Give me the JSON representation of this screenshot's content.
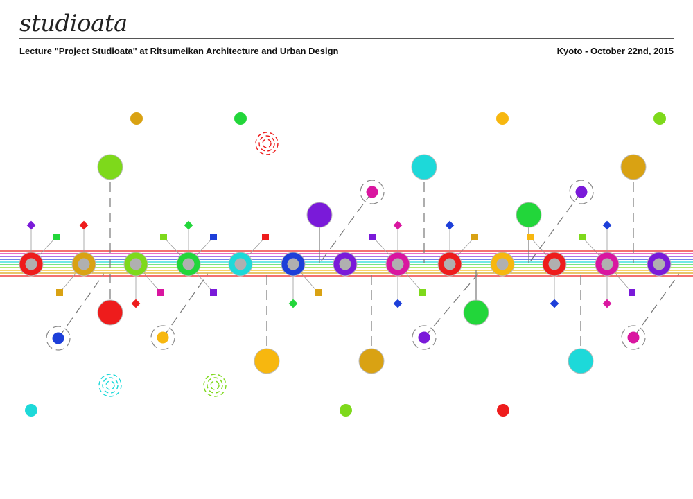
{
  "header": {
    "logo": "studioata",
    "subtitle": "Lecture \"Project Studioata\" at Ritsumeikan Architecture and Urban Design",
    "place_date": "Kyoto - October 22nd, 2015"
  },
  "colors": {
    "red": "#ee1c1c",
    "gold": "#d9a213",
    "lime": "#7ed91b",
    "green": "#22d63a",
    "cyan": "#1dd9d9",
    "blue": "#1d3fd9",
    "violet": "#7a1ad9",
    "magenta": "#d916a0",
    "yellow": "#f7b70f",
    "ring_inner": "#b0b0b0",
    "connector": "#777777"
  }
}
